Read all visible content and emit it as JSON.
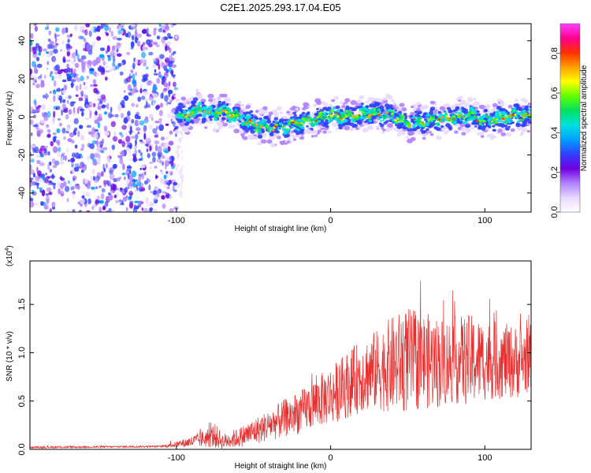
{
  "chart_data": [
    {
      "type": "heatmap",
      "title": "C2E1.2025.293.17.04.E05",
      "xlabel": "Height of straight line (km)",
      "ylabel": "Frequency (Hz)",
      "xlim": [
        -195,
        130
      ],
      "ylim": [
        -50,
        49
      ],
      "x_ticks": [
        -100,
        0,
        100
      ],
      "y_ticks": [
        -40,
        -20,
        0,
        20,
        40
      ],
      "x_tick_labels": [
        "-100",
        "0",
        "100"
      ],
      "y_tick_labels": [
        "-40",
        "-20",
        "0",
        "20",
        "40"
      ],
      "noise_region_x": [
        -195,
        -100
      ],
      "signal_ridge": {
        "x": [
          -100,
          -90,
          -85,
          -80,
          -70,
          -60,
          -50,
          -40,
          -30,
          -20,
          -10,
          0,
          10,
          20,
          30,
          40,
          50,
          60,
          70,
          80,
          90,
          100,
          110,
          120,
          130
        ],
        "y": [
          0,
          2,
          5,
          2,
          3,
          0,
          -4,
          -6,
          -5,
          -3,
          -1,
          1,
          0,
          1,
          2,
          1,
          -3,
          -2,
          -1,
          0,
          1,
          -2,
          -1,
          1,
          0
        ]
      },
      "colorbar": {
        "label": "Normalized spectral amplitude",
        "range": [
          0,
          0.95
        ],
        "ticks": [
          0.0,
          0.2,
          0.4,
          0.6,
          0.8
        ],
        "tick_labels": [
          "0.0",
          "0.2",
          "0.4",
          "0.6",
          "0.8"
        ],
        "colors": [
          "#ffffff",
          "#e8d8ff",
          "#b080ff",
          "#7000e0",
          "#3040ff",
          "#00a0ff",
          "#00e0e0",
          "#00e060",
          "#60ff00",
          "#ffff00",
          "#ffa000",
          "#ff3000",
          "#ff0090",
          "#ff40ff"
        ]
      }
    },
    {
      "type": "line",
      "xlabel": "Height of straight line (km)",
      "ylabel": "SNR (10 * v/v)",
      "multiplier_label": "(x10",
      "multiplier_exp": "4",
      "multiplier_close": ")",
      "xlim": [
        -195,
        130
      ],
      "ylim": [
        0,
        1.95
      ],
      "x_ticks": [
        -100,
        0,
        100
      ],
      "y_ticks": [
        0.0,
        0.5,
        1.0,
        1.5
      ],
      "x_tick_labels": [
        "-100",
        "0",
        "100"
      ],
      "y_tick_labels": [
        "0.0",
        "0.5",
        "1.0",
        "1.5"
      ],
      "color": "#e83030",
      "envelope": {
        "x": [
          -195,
          -110,
          -100,
          -90,
          -80,
          -75,
          -70,
          -60,
          -50,
          -40,
          -30,
          -20,
          -10,
          0,
          10,
          20,
          30,
          40,
          50,
          60,
          70,
          80,
          90,
          100,
          110,
          120,
          130
        ],
        "mean": [
          0.02,
          0.03,
          0.05,
          0.08,
          0.12,
          0.14,
          0.08,
          0.12,
          0.18,
          0.25,
          0.32,
          0.38,
          0.48,
          0.56,
          0.66,
          0.76,
          0.82,
          0.88,
          0.92,
          0.92,
          0.9,
          0.92,
          0.92,
          0.92,
          0.92,
          0.9,
          0.95
        ],
        "amplitude": [
          0.01,
          0.01,
          0.03,
          0.06,
          0.1,
          0.13,
          0.08,
          0.1,
          0.14,
          0.16,
          0.2,
          0.22,
          0.26,
          0.3,
          0.34,
          0.38,
          0.42,
          0.5,
          0.55,
          0.5,
          0.48,
          0.45,
          0.48,
          0.42,
          0.4,
          0.38,
          0.35
        ]
      }
    }
  ]
}
